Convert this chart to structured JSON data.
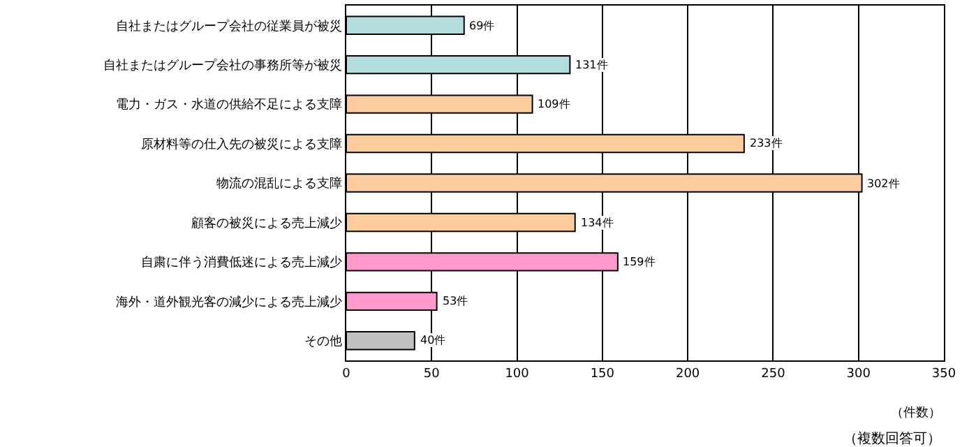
{
  "chart_data": {
    "type": "bar",
    "orientation": "horizontal",
    "categories": [
      "自社またはグループ会社の従業員が被災",
      "自社またはグループ会社の事務所等が被災",
      "電力・ガス・水道の供給不足による支障",
      "原材料等の仕入先の被災による支障",
      "物流の混乱による支障",
      "顧客の被災による売上減少",
      "自粛に伴う消費低迷による売上減少",
      "海外・道外観光客の減少による売上減少",
      "その他"
    ],
    "values": [
      69,
      131,
      109,
      233,
      302,
      134,
      159,
      53,
      40
    ],
    "colors": [
      "#b4dede",
      "#b4dede",
      "#fccc9c",
      "#fccc9c",
      "#fccc9c",
      "#fccc9c",
      "#ff99cc",
      "#ff99cc",
      "#c0c0c0"
    ],
    "value_labels": [
      "69件",
      "131件",
      "109件",
      "233件",
      "302件",
      "134件",
      "159件",
      "53件",
      "40件"
    ],
    "xlim": [
      0,
      350
    ],
    "xticks": [
      0,
      50,
      100,
      150,
      200,
      250,
      300,
      350
    ],
    "xlabel": "（件数）",
    "annotations": [
      "（複数回答可）"
    ],
    "grid": "x"
  }
}
